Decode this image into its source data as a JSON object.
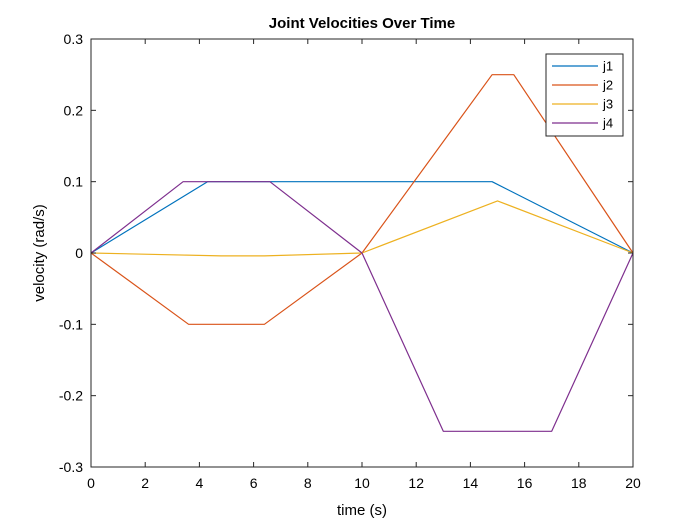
{
  "chart_data": {
    "type": "line",
    "title": "Joint Velocities Over Time",
    "xlabel": "time (s)",
    "ylabel": "velocity (rad/s)",
    "xlim": [
      0,
      20
    ],
    "ylim": [
      -0.3,
      0.3
    ],
    "xticks": [
      0,
      2,
      4,
      6,
      8,
      10,
      12,
      14,
      16,
      18,
      20
    ],
    "yticks": [
      -0.3,
      -0.2,
      -0.1,
      0,
      0.1,
      0.2,
      0.3
    ],
    "xtick_labels": [
      "0",
      "2",
      "4",
      "6",
      "8",
      "10",
      "12",
      "14",
      "16",
      "18",
      "20"
    ],
    "ytick_labels": [
      "-0.3",
      "-0.2",
      "-0.1",
      "0",
      "0.1",
      "0.2",
      "0.3"
    ],
    "grid": false,
    "legend_position": "top-right",
    "series": [
      {
        "name": "j1",
        "color": "#0072BD",
        "x": [
          0,
          4.3,
          14.8,
          20
        ],
        "y": [
          0,
          0.1,
          0.1,
          0
        ]
      },
      {
        "name": "j2",
        "color": "#D95319",
        "x": [
          0,
          3.6,
          6.4,
          10,
          14.8,
          15.6,
          20
        ],
        "y": [
          0,
          -0.1,
          -0.1,
          0,
          0.25,
          0.25,
          0
        ]
      },
      {
        "name": "j3",
        "color": "#EDB120",
        "x": [
          0,
          4.8,
          6.4,
          10,
          15,
          20
        ],
        "y": [
          0,
          -0.004,
          -0.004,
          0,
          0.073,
          0
        ]
      },
      {
        "name": "j4",
        "color": "#7E2F8E",
        "x": [
          0,
          3.4,
          6.6,
          10,
          13,
          17,
          20
        ],
        "y": [
          0,
          0.1,
          0.1,
          0,
          -0.25,
          -0.25,
          0
        ]
      }
    ]
  }
}
